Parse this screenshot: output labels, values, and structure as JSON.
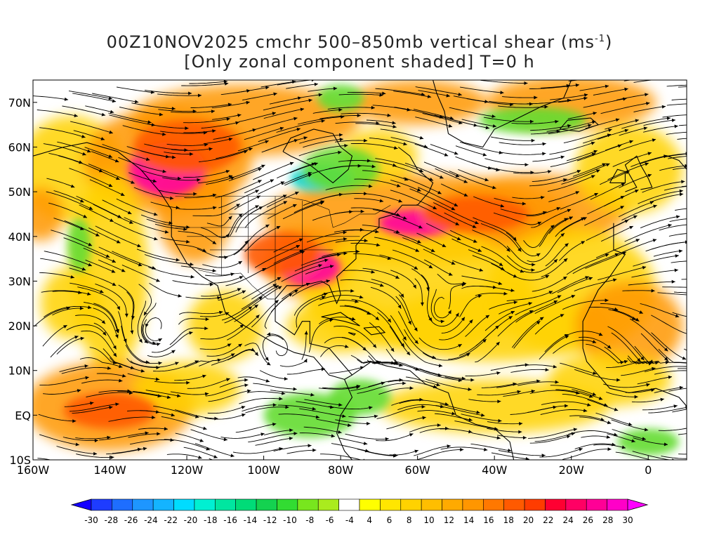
{
  "title": {
    "line1_prefix": "00Z10NOV2025 cmchr 500–850mb vertical shear (ms",
    "line1_sup": "-1",
    "line1_suffix": ")",
    "line2": "[Only zonal component shaded] T=0 h"
  },
  "axes": {
    "lat_labels": [
      "70N",
      "60N",
      "50N",
      "40N",
      "30N",
      "20N",
      "10N",
      "EQ",
      "10S"
    ],
    "lat_values": [
      70,
      60,
      50,
      40,
      30,
      20,
      10,
      0,
      -10
    ],
    "lon_labels": [
      "160W",
      "140W",
      "120W",
      "100W",
      "80W",
      "60W",
      "40W",
      "20W",
      "0"
    ],
    "lon_values": [
      -160,
      -140,
      -120,
      -100,
      -80,
      -60,
      -40,
      -20,
      0
    ],
    "lon_range": [
      -160,
      10
    ],
    "lat_range": [
      -10,
      75
    ]
  },
  "colorbar": {
    "labels": [
      "-30",
      "-28",
      "-26",
      "-24",
      "-22",
      "-20",
      "-18",
      "-16",
      "-14",
      "-12",
      "-10",
      "-8",
      "-6",
      "-4",
      "4",
      "6",
      "8",
      "10",
      "12",
      "14",
      "16",
      "18",
      "20",
      "22",
      "24",
      "26",
      "28",
      "30"
    ],
    "colors": [
      "#1400ff",
      "#1e3cff",
      "#1e6eff",
      "#1e96ff",
      "#14b4ff",
      "#00dcff",
      "#00f0d2",
      "#00e6a0",
      "#00dc78",
      "#14d250",
      "#32dc32",
      "#78e61e",
      "#aaeb1e",
      "#ffffff",
      "#ffff00",
      "#ffe600",
      "#ffd200",
      "#ffbe00",
      "#ffaa00",
      "#ff9600",
      "#ff7800",
      "#ff5a00",
      "#ff3c00",
      "#ff0032",
      "#ff0064",
      "#ff0096",
      "#ff00c8",
      "#ff00ff"
    ]
  },
  "shading": {
    "background": "#ffffff",
    "yellow": "#ffd200",
    "orange": "#ff9600",
    "red_orange": "#ff5a00",
    "magenta": "#ff00a0",
    "green": "#64dc32",
    "cyan": "#00d2c8"
  }
}
